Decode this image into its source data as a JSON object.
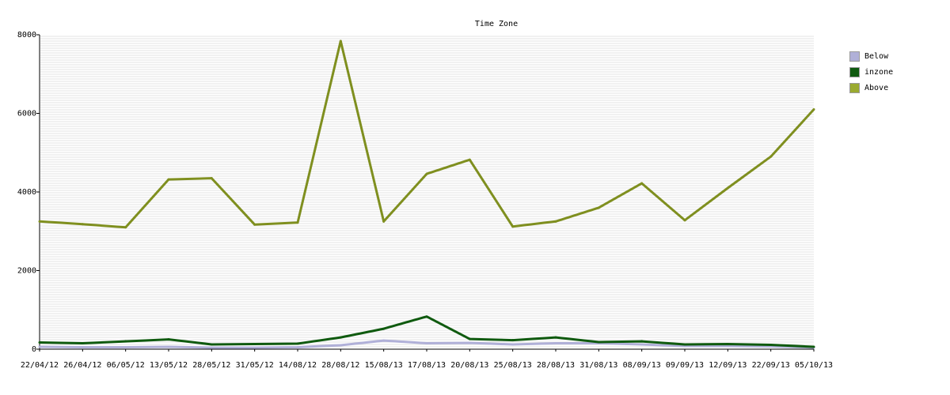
{
  "chart_data": {
    "type": "line",
    "title": "Time Zone",
    "categories": [
      "22/04/12",
      "26/04/12",
      "06/05/12",
      "13/05/12",
      "28/05/12",
      "31/05/12",
      "14/08/12",
      "28/08/12",
      "15/08/13",
      "17/08/13",
      "20/08/13",
      "25/08/13",
      "28/08/13",
      "31/08/13",
      "08/09/13",
      "09/09/13",
      "12/09/13",
      "22/09/13",
      "05/10/13"
    ],
    "ylim": [
      0,
      8000
    ],
    "yticks": [
      0,
      2000,
      4000,
      6000,
      8000
    ],
    "grid": true,
    "legend_position": "right",
    "series": [
      {
        "name": "Below",
        "color": "#b0b0d8",
        "values": [
          60,
          50,
          50,
          60,
          40,
          40,
          50,
          100,
          220,
          150,
          160,
          120,
          150,
          150,
          120,
          80,
          80,
          70,
          40
        ]
      },
      {
        "name": "inzone",
        "color": "#0f5a0f",
        "values": [
          170,
          150,
          200,
          250,
          120,
          130,
          140,
          300,
          520,
          830,
          260,
          230,
          300,
          180,
          200,
          120,
          130,
          110,
          60
        ]
      },
      {
        "name": "Above",
        "color": "#7f8f1f",
        "values": [
          3250,
          3180,
          3100,
          4320,
          4350,
          3170,
          3220,
          7840,
          3250,
          4460,
          4820,
          3120,
          3250,
          3600,
          4220,
          3280,
          4100,
          4900,
          6100
        ]
      }
    ]
  }
}
